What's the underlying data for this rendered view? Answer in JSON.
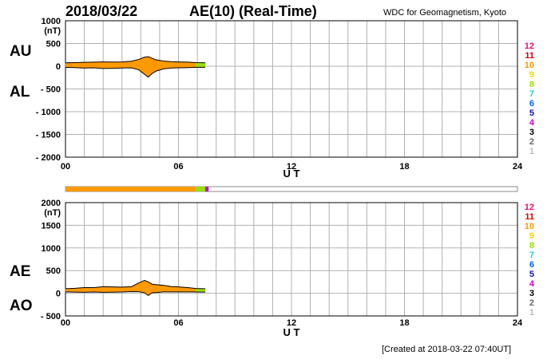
{
  "header": {
    "date": "2018/03/22",
    "title": "AE(10) (Real-Time)",
    "source": "WDC for Geomagnetism, Kyoto"
  },
  "footer": "[Created at 2018-03-22 07:40UT]",
  "legend": {
    "labels": [
      "12",
      "11",
      "10",
      "9",
      "8",
      "7",
      "6",
      "5",
      "4",
      "3",
      "2",
      "1"
    ],
    "colors": [
      "#e8106e",
      "#e00000",
      "#ff9900",
      "#e8d800",
      "#99e000",
      "#22cccc",
      "#0066ff",
      "#1010c0",
      "#cc00cc",
      "#000000",
      "#666666",
      "#bbbbbb"
    ]
  },
  "station_bar": {
    "segments": [
      {
        "start": 0.0,
        "end": 6.92,
        "stations": 10
      },
      {
        "start": 6.92,
        "end": 7.42,
        "stations": 8
      },
      {
        "start": 7.42,
        "end": 7.6,
        "stations": 4
      }
    ]
  },
  "chart_data": [
    {
      "type": "area",
      "panel": "top",
      "series_labels": [
        "AU",
        "AL"
      ],
      "yunit": "(nT)",
      "xlabel": "U T",
      "xticks": [
        0,
        6,
        12,
        18,
        24
      ],
      "xtick_labels": [
        "00",
        "06",
        "12",
        "18",
        "24"
      ],
      "xlim": [
        0,
        24
      ],
      "ylim": [
        -2000,
        1000
      ],
      "yticks": [
        1000,
        500,
        0,
        -500,
        -1000,
        -1500,
        -2000
      ],
      "ytick_labels": [
        "1000",
        "500",
        "0",
        "- 500",
        "- 1000",
        "- 1500",
        "- 2000"
      ],
      "grid": true,
      "x": [
        0.0,
        0.5,
        1.0,
        1.5,
        2.0,
        2.5,
        3.0,
        3.5,
        3.9,
        4.2,
        4.4,
        4.6,
        4.8,
        5.2,
        5.6,
        6.0,
        6.5,
        6.92,
        7.42
      ],
      "upper": [
        75,
        78,
        85,
        90,
        95,
        92,
        95,
        110,
        150,
        200,
        210,
        175,
        140,
        115,
        100,
        95,
        90,
        80,
        75
      ],
      "lower": [
        -25,
        -30,
        -40,
        -35,
        -50,
        -45,
        -40,
        -35,
        -80,
        -180,
        -240,
        -160,
        -110,
        -60,
        -40,
        -35,
        -30,
        -25,
        -25
      ],
      "stations": [
        10,
        10,
        10,
        10,
        10,
        10,
        10,
        10,
        10,
        10,
        10,
        10,
        10,
        10,
        10,
        10,
        10,
        8,
        4
      ]
    },
    {
      "type": "area",
      "panel": "bottom",
      "series_labels": [
        "AE",
        "AO"
      ],
      "yunit": "(nT)",
      "xlabel": "U T",
      "xticks": [
        0,
        6,
        12,
        18,
        24
      ],
      "xtick_labels": [
        "00",
        "06",
        "12",
        "18",
        "24"
      ],
      "xlim": [
        0,
        24
      ],
      "ylim": [
        -500,
        2000
      ],
      "yticks": [
        2000,
        1500,
        1000,
        500,
        0,
        -500
      ],
      "ytick_labels": [
        "2000",
        "1500",
        "1000",
        "500",
        "0",
        "- 500"
      ],
      "grid": true,
      "x": [
        0.0,
        0.5,
        1.0,
        1.5,
        2.0,
        2.5,
        3.0,
        3.5,
        3.9,
        4.2,
        4.4,
        4.6,
        4.8,
        5.2,
        5.6,
        6.0,
        6.5,
        6.92,
        7.42
      ],
      "upper": [
        100,
        110,
        125,
        125,
        145,
        140,
        135,
        145,
        230,
        285,
        250,
        200,
        190,
        175,
        150,
        140,
        125,
        105,
        100
      ],
      "lower": [
        30,
        25,
        22,
        28,
        22,
        24,
        28,
        38,
        35,
        10,
        -50,
        10,
        15,
        30,
        30,
        30,
        30,
        28,
        25
      ],
      "stations": [
        10,
        10,
        10,
        10,
        10,
        10,
        10,
        10,
        10,
        10,
        10,
        10,
        10,
        10,
        10,
        10,
        10,
        8,
        4
      ]
    }
  ]
}
